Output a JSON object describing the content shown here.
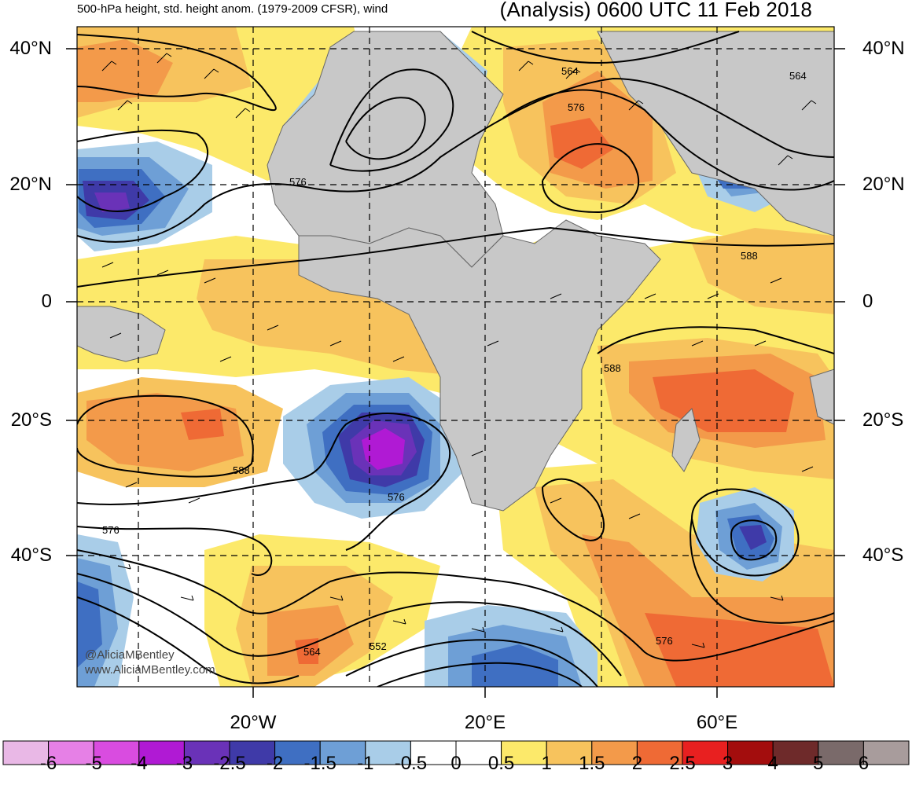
{
  "title_left": "500-hPa height, std. height anom. (1979-2009 CFSR), wind",
  "title_right": "(Analysis) 0600 UTC 11 Feb 2018",
  "lat_labels": [
    "40°N",
    "20°N",
    "0",
    "20°S",
    "40°S"
  ],
  "lon_labels": [
    "20°W",
    "20°E",
    "60°E"
  ],
  "contour_labels": [
    "564",
    "576",
    "564",
    "576",
    "588",
    "588",
    "576",
    "588",
    "576",
    "576",
    "564",
    "552"
  ],
  "credit": [
    "@AliciaMBentley",
    "www.AliciaMBentley.com"
  ],
  "colorbar": {
    "ticks": [
      "-6",
      "-5",
      "-4",
      "-3",
      "-2.5",
      "-2",
      "-1.5",
      "-1",
      "-0.5",
      "0",
      "0.5",
      "1",
      "1.5",
      "2",
      "2.5",
      "3",
      "4",
      "5",
      "6"
    ],
    "colors": [
      "#e9b8e6",
      "#e680e6",
      "#d94ce0",
      "#b01ad4",
      "#6a32b8",
      "#3f3aa8",
      "#3f6fc2",
      "#6e9fd6",
      "#a9cde8",
      "#ffffff",
      "#ffffff",
      "#fce96a",
      "#f7c35d",
      "#f39a4a",
      "#ef6a35",
      "#e82020",
      "#a30d0d",
      "#6e2a2a",
      "#7a6a6a",
      "#a89c9c"
    ]
  },
  "colors": {
    "land": "#c8c8c8",
    "coast": "#666666",
    "contour": "#000000"
  }
}
